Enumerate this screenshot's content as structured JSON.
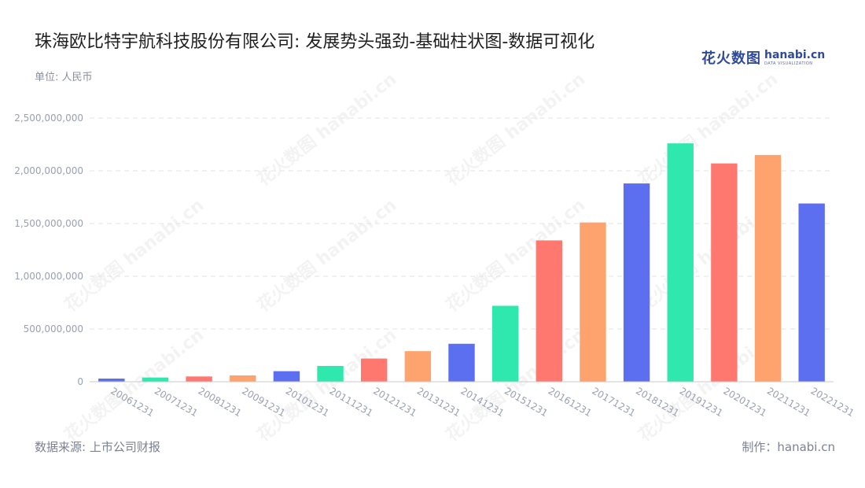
{
  "header": {
    "title": "珠海欧比特宇航科技股份有限公司: 发展势头强劲-基础柱状图-数据可视化",
    "unit": "单位: 人民币"
  },
  "logo": {
    "cn": "花火数图",
    "en": "hanabi.cn",
    "sub": "DATA VISUALIZATION"
  },
  "footer": {
    "source": "数据来源: 上市公司财报",
    "maker": "制作：hanabi.cn"
  },
  "colors": {
    "palette": [
      "#5b6ff0",
      "#2ee8ae",
      "#ff7870",
      "#ffa36e"
    ],
    "grid": "#e3e3e3",
    "tick": "#9aa0b4"
  },
  "chart_data": {
    "type": "bar",
    "title": "珠海欧比特宇航科技股份有限公司: 发展势头强劲-基础柱状图-数据可视化",
    "xlabel": "",
    "ylabel": "单位: 人民币",
    "ylim": [
      0,
      2500000000
    ],
    "yticks": [
      0,
      500000000,
      1000000000,
      1500000000,
      2000000000,
      2500000000
    ],
    "ytick_labels": [
      "0",
      "500,000,000",
      "1,000,000,000",
      "1,500,000,000",
      "2,000,000,000",
      "2,500,000,000"
    ],
    "grid": true,
    "legend": "none",
    "categories": [
      "20061231",
      "20071231",
      "20081231",
      "20091231",
      "20101231",
      "20111231",
      "20121231",
      "20131231",
      "20141231",
      "20151231",
      "20161231",
      "20171231",
      "20181231",
      "20191231",
      "20201231",
      "20211231",
      "20221231"
    ],
    "values": [
      30000000,
      40000000,
      50000000,
      60000000,
      100000000,
      150000000,
      220000000,
      290000000,
      360000000,
      720000000,
      1340000000,
      1510000000,
      1880000000,
      2260000000,
      2070000000,
      2150000000,
      1690000000
    ]
  }
}
